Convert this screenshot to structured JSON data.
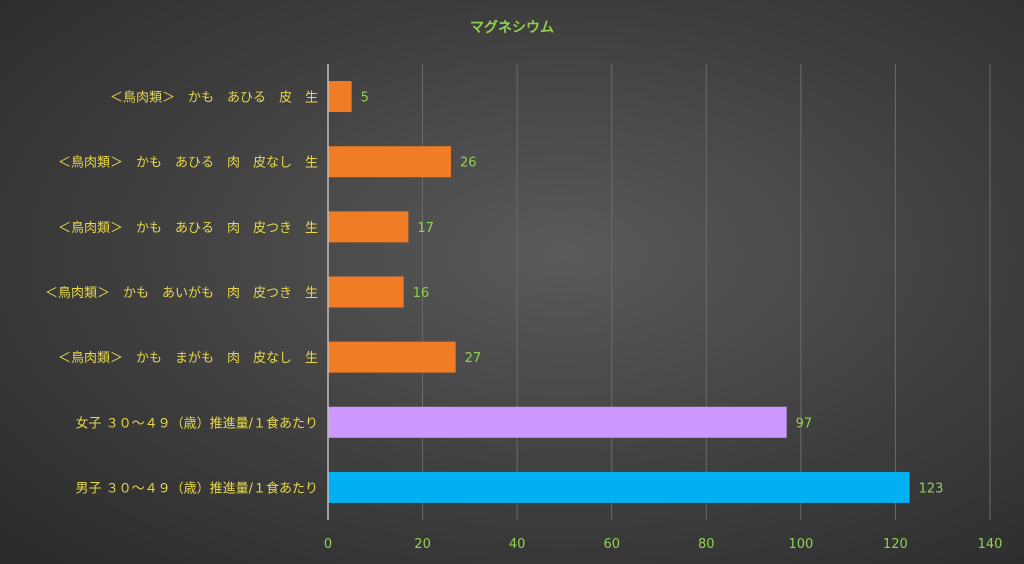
{
  "chart_data": {
    "type": "bar",
    "orientation": "horizontal",
    "title": "マグネシウム",
    "xlabel": "",
    "ylabel": "",
    "xlim": [
      0,
      140
    ],
    "xticks": [
      0,
      20,
      40,
      60,
      80,
      100,
      120,
      140
    ],
    "grid": true,
    "categories": [
      "＜鳥肉類＞　かも　あひる　皮　生",
      "＜鳥肉類＞　かも　あひる　肉　皮なし　生",
      "＜鳥肉類＞　かも　あひる　肉　皮つき　生",
      "＜鳥肉類＞　かも　あいがも　肉　皮つき　生",
      "＜鳥肉類＞　かも　まがも　肉　皮なし　生",
      "女子 ３０～４９（歳）推進量/１食あたり",
      "男子 ３０～４９（歳）推進量/１食あたり"
    ],
    "values": [
      5,
      26,
      17,
      16,
      27,
      97,
      123
    ],
    "colors": [
      "#f07c25",
      "#f07c25",
      "#f07c25",
      "#f07c25",
      "#f07c25",
      "#cc99ff",
      "#00b0f0"
    ]
  }
}
